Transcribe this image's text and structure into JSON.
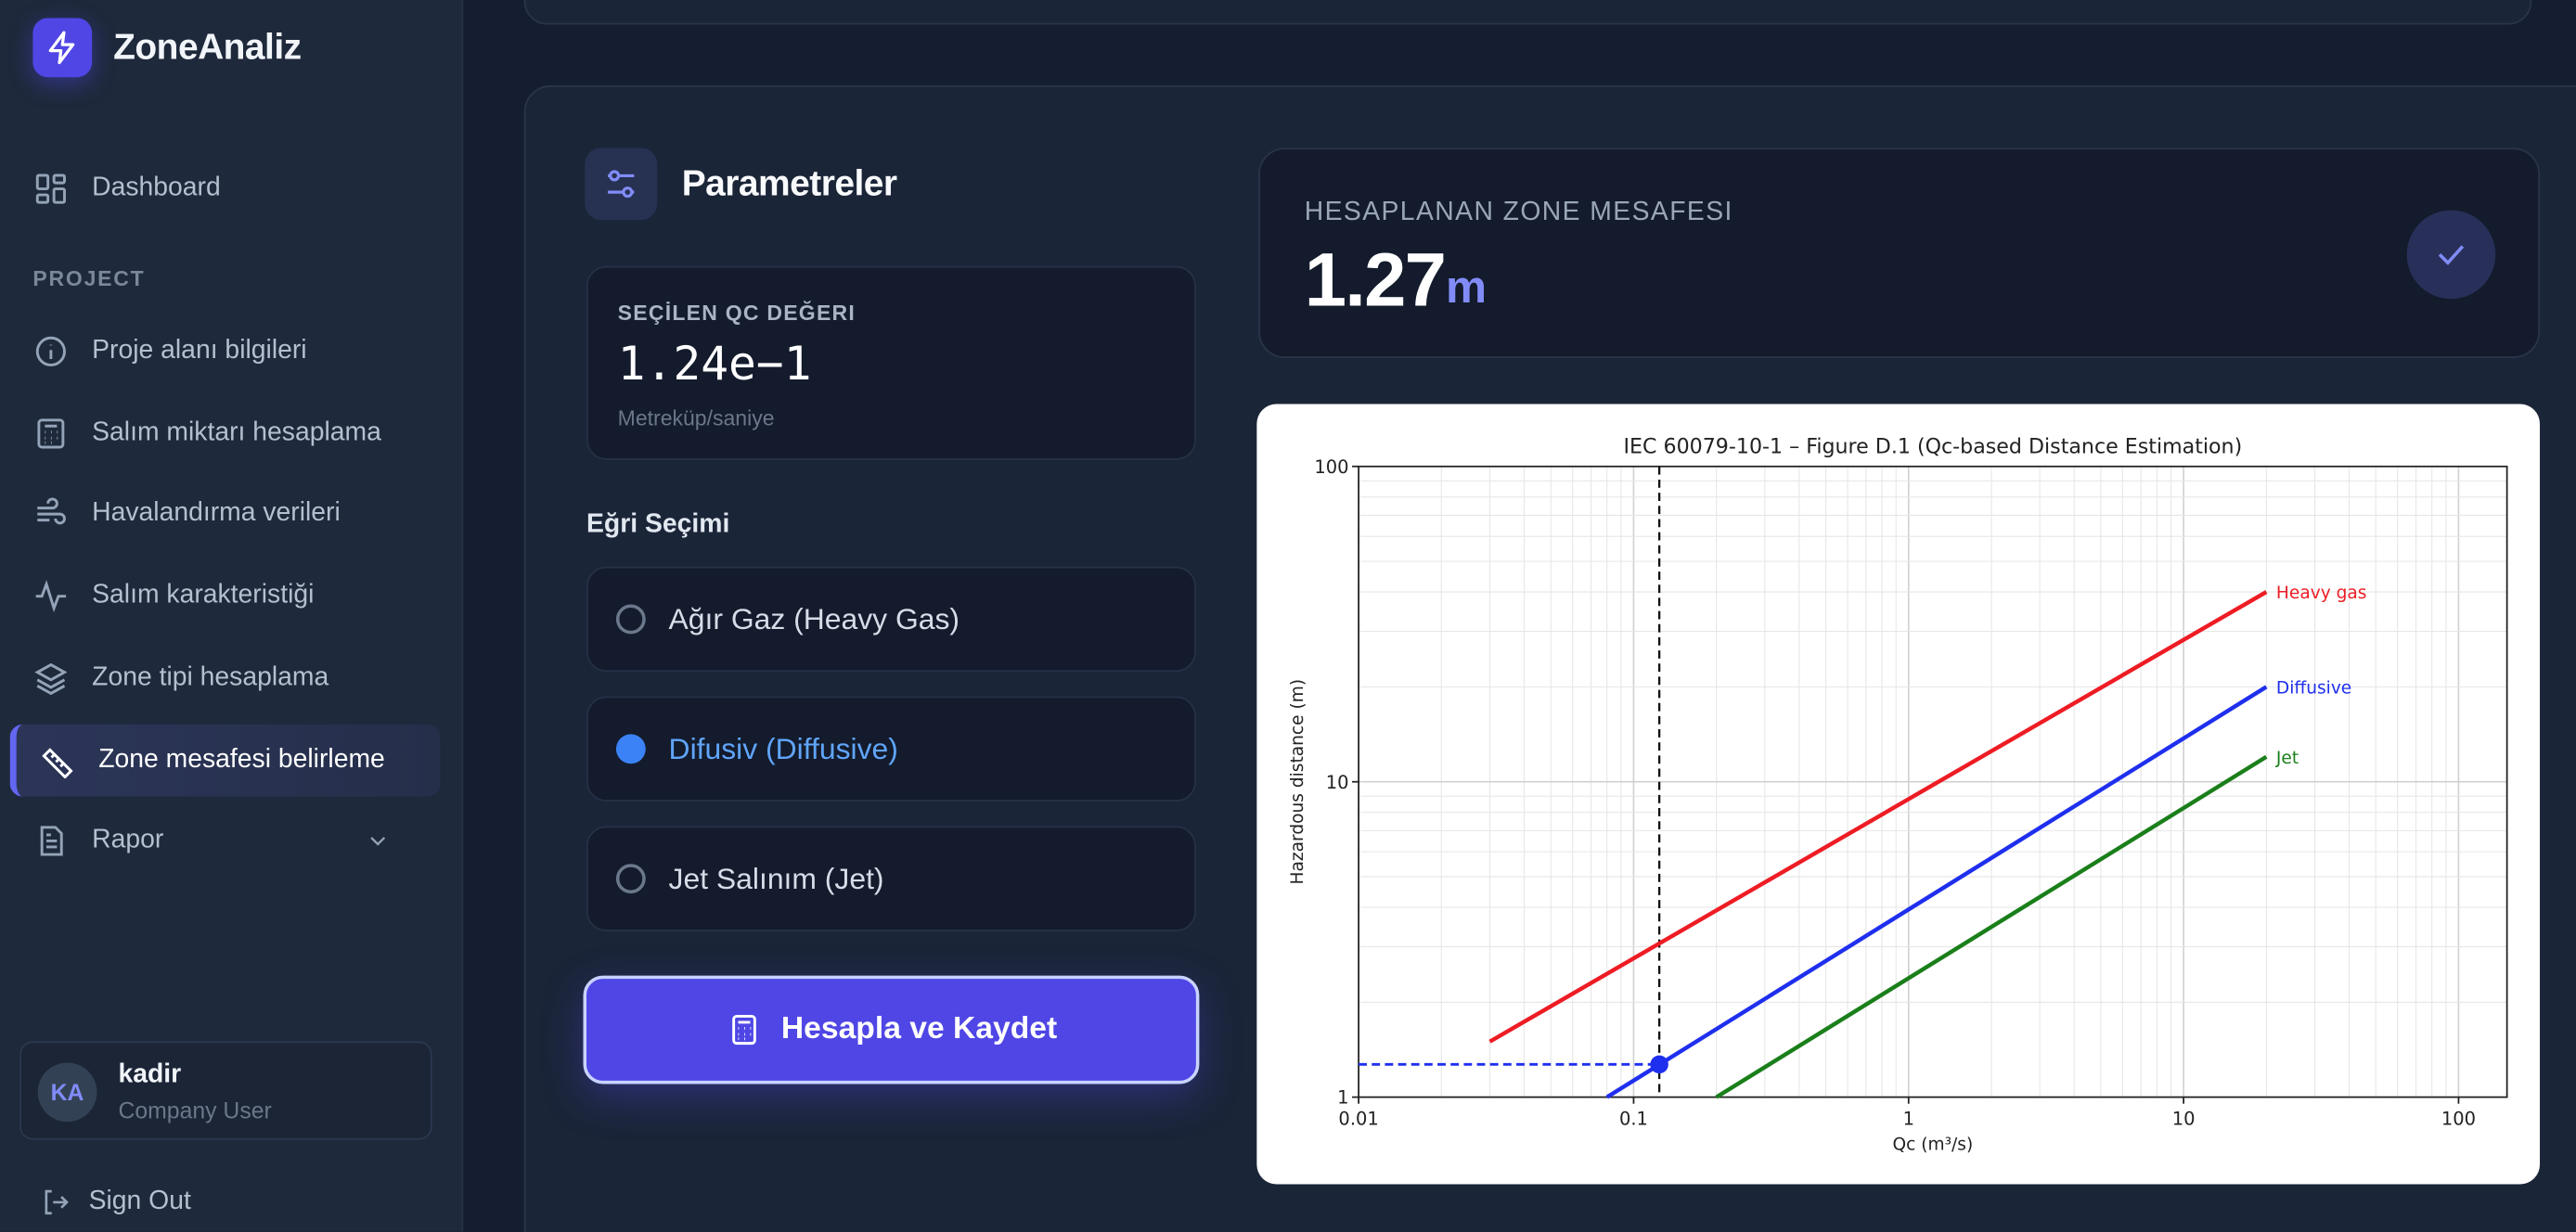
{
  "app": {
    "name": "ZoneAnaliz",
    "logo_icon": "lightning-icon"
  },
  "sidebar": {
    "dashboard": "Dashboard",
    "section": "PROJECT",
    "items": [
      {
        "label": "Proje alanı bilgileri",
        "icon": "info-icon"
      },
      {
        "label": "Salım miktarı hesaplama",
        "icon": "calculator-icon"
      },
      {
        "label": "Havalandırma verileri",
        "icon": "wind-icon"
      },
      {
        "label": "Salım karakteristiği",
        "icon": "activity-icon"
      },
      {
        "label": "Zone tipi hesaplama",
        "icon": "layers-icon"
      },
      {
        "label": "Zone mesafesi belirleme",
        "icon": "ruler-icon",
        "active": true
      },
      {
        "label": "Rapor",
        "icon": "file-icon"
      }
    ],
    "user": {
      "initials": "KA",
      "name": "kadir",
      "role": "Company User"
    },
    "sign_out": "Sign Out"
  },
  "params": {
    "title": "Parametreler",
    "qc_label": "SEÇİLEN QC DEĞERI",
    "qc_value": "1.24e−1",
    "qc_unit": "Metreküp/saniye",
    "curve_label": "Eğri Seçimi",
    "options": [
      {
        "label": "Ağır Gaz (Heavy Gas)",
        "selected": false
      },
      {
        "label": "Difusiv (Diffusive)",
        "selected": true
      },
      {
        "label": "Jet Salınım (Jet)",
        "selected": false
      }
    ],
    "button": "Hesapla ve Kaydet"
  },
  "result": {
    "label": "HESAPLANAN ZONE MESAFESI",
    "value": "1.27",
    "unit": "m"
  },
  "colors": {
    "accent": "#4f46e5",
    "selected": "#3b82f6"
  },
  "chart_data": {
    "type": "line",
    "title": "IEC 60079-10-1 – Figure D.1 (Qc-based Distance Estimation)",
    "xlabel": "Qc (m³/s)",
    "ylabel": "Hazardous distance (m)",
    "xscale": "log",
    "yscale": "log",
    "xlim": [
      0.01,
      150
    ],
    "ylim": [
      1,
      100
    ],
    "xticks": [
      "0.01",
      "0.1",
      "1",
      "10",
      "100"
    ],
    "yticks": [
      "1",
      "10",
      "100"
    ],
    "grid": "major and minor",
    "series": [
      {
        "name": "Heavy gas",
        "color": "#ee1c24",
        "points": [
          [
            0.03,
            1.5
          ],
          [
            20,
            40
          ]
        ]
      },
      {
        "name": "Diffusive",
        "color": "#1f2fee",
        "points": [
          [
            0.08,
            1
          ],
          [
            20,
            20
          ]
        ]
      },
      {
        "name": "Jet",
        "color": "#1a7f1a",
        "points": [
          [
            0.2,
            1
          ],
          [
            20,
            12
          ]
        ]
      }
    ],
    "selected_point": {
      "x": 0.124,
      "y": 1.27,
      "color": "#1f2fee"
    }
  }
}
